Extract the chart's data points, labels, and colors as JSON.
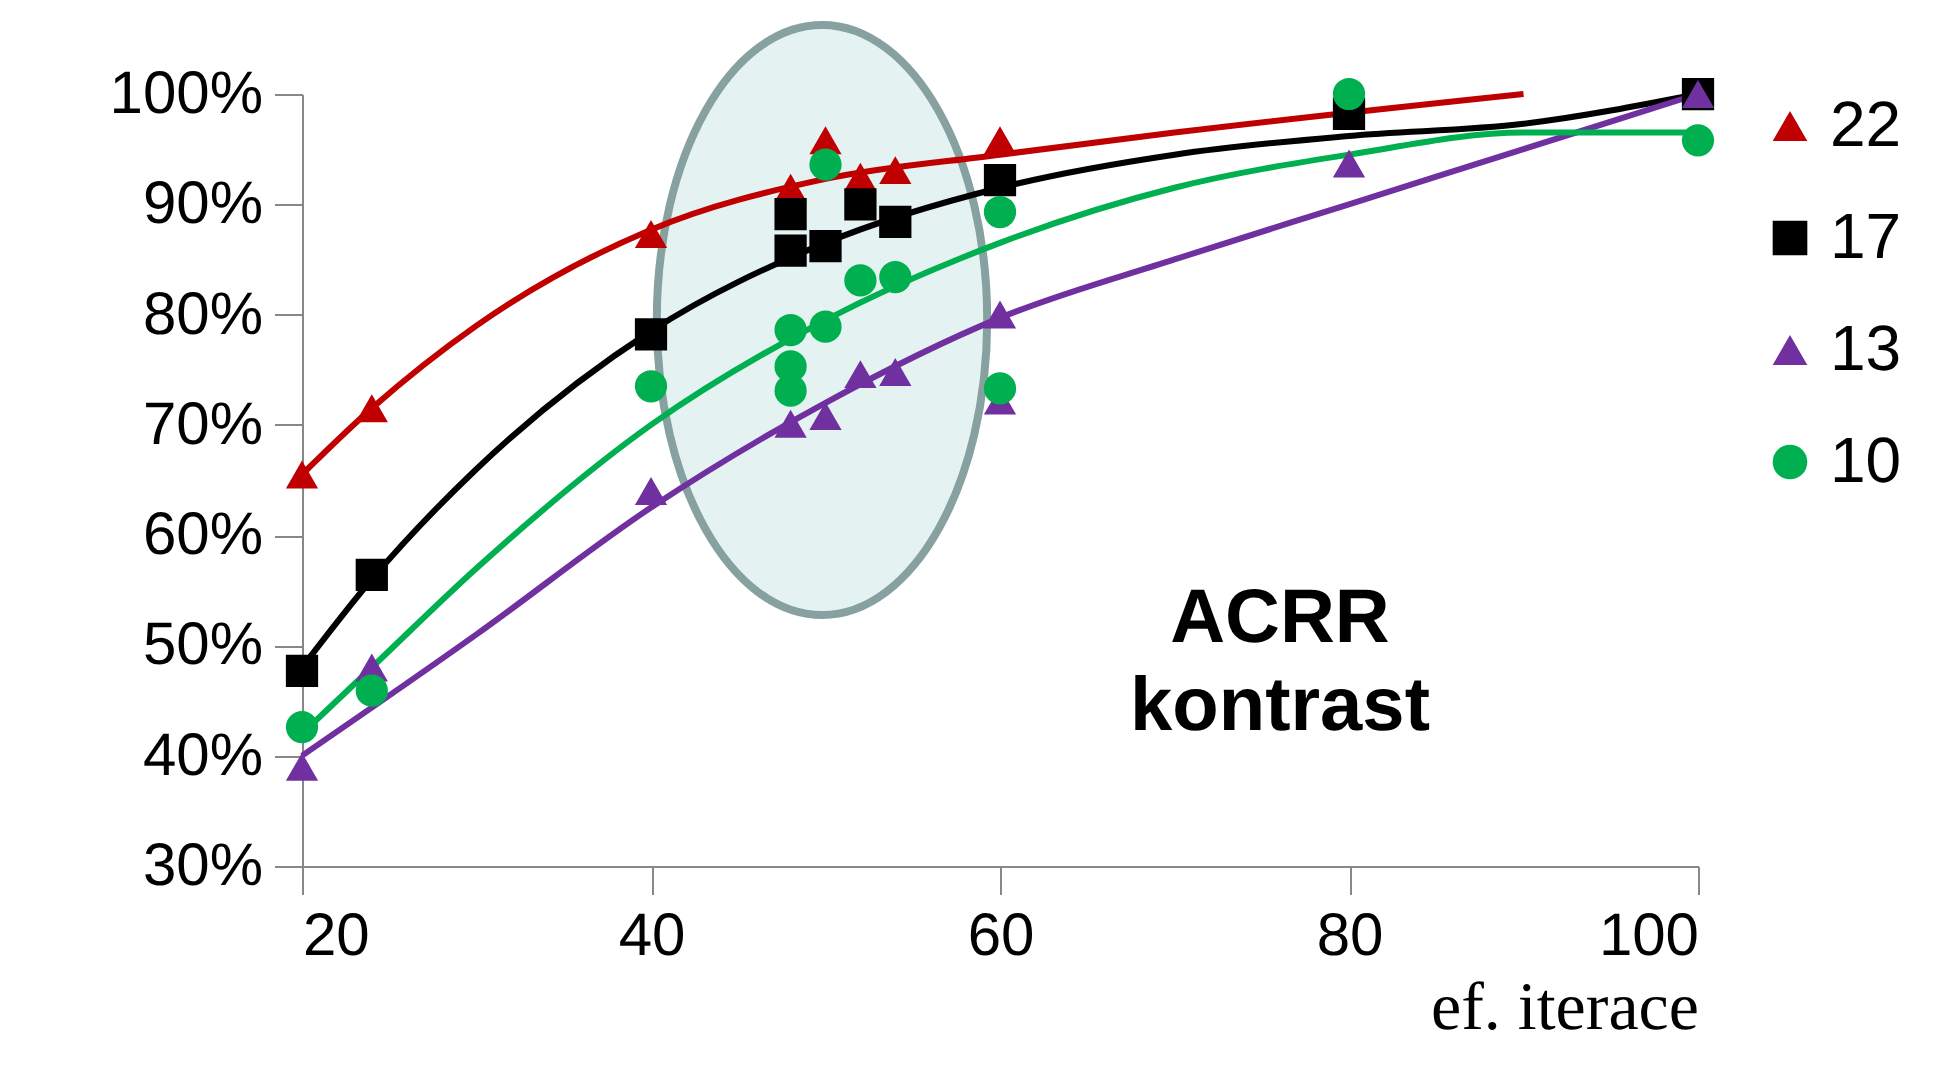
{
  "chart_data": {
    "type": "scatter",
    "title": "ACRR kontrast",
    "xlabel": "ef. iterace",
    "xlim": [
      20,
      100
    ],
    "xticks": [
      20,
      40,
      60,
      80,
      100
    ],
    "ylim": [
      30,
      100
    ],
    "yticks": [
      {
        "value": 30,
        "label": "30%"
      },
      {
        "value": 40,
        "label": "40%"
      },
      {
        "value": 50,
        "label": "50%"
      },
      {
        "value": 60,
        "label": "60%"
      },
      {
        "value": 70,
        "label": "70%"
      },
      {
        "value": 80,
        "label": "80%"
      },
      {
        "value": 90,
        "label": "90%"
      },
      {
        "value": 100,
        "label": "100%"
      }
    ],
    "grid": false,
    "legend": "right",
    "series": [
      {
        "type": "line",
        "color": "#c00000",
        "x": [
          20,
          24,
          30,
          40,
          50,
          60,
          70,
          90
        ],
        "values": [
          65.5,
          71.5,
          79,
          87.7,
          92.3,
          94.5,
          96.5,
          100
        ]
      },
      {
        "type": "line",
        "color": "#000000",
        "x": [
          20,
          24,
          30,
          40,
          50,
          60,
          70,
          80,
          90,
          100
        ],
        "values": [
          48,
          56,
          66,
          78.5,
          86.5,
          91.5,
          94.5,
          96.2,
          97.3,
          100
        ]
      },
      {
        "type": "line",
        "color": "#7030a0",
        "x": [
          20,
          30,
          40,
          50,
          60,
          70,
          80,
          90,
          100
        ],
        "values": [
          40,
          51,
          62.5,
          72,
          79.7,
          85,
          90,
          95,
          100
        ]
      },
      {
        "type": "line",
        "color": "#00b050",
        "x": [
          20,
          24,
          30,
          40,
          50,
          60,
          70,
          80,
          90,
          100
        ],
        "values": [
          42,
          48,
          57,
          70,
          79.5,
          86.5,
          91.5,
          94.5,
          96.5,
          96.5
        ]
      },
      {
        "name": "22",
        "color": "#c00000",
        "marker": "triangle",
        "x": [
          20,
          24,
          40,
          48,
          50,
          52,
          54,
          60
        ],
        "values": [
          65.5,
          71.5,
          87.3,
          91.5,
          95.8,
          92.5,
          93.1,
          95.8
        ]
      },
      {
        "name": "17",
        "color": "#000000",
        "marker": "square",
        "x": [
          20,
          24,
          40,
          48,
          48,
          50,
          52,
          54,
          60,
          80,
          100
        ],
        "values": [
          47.7,
          56.4,
          78.2,
          89.1,
          85.8,
          86.2,
          90,
          88.4,
          92.2,
          98.2,
          100
        ]
      },
      {
        "name": "13",
        "color": "#7030a0",
        "marker": "triangle",
        "x": [
          20,
          24,
          40,
          48,
          50,
          52,
          54,
          60,
          60,
          80,
          100
        ],
        "values": [
          39,
          48,
          64,
          70.1,
          70.8,
          74.6,
          74.8,
          80,
          72.2,
          93.7,
          100
        ]
      },
      {
        "name": "10",
        "color": "#00b050",
        "marker": "circle",
        "x": [
          20,
          24,
          40,
          48,
          48,
          48,
          50,
          50,
          52,
          54,
          60,
          60,
          80,
          100
        ],
        "values": [
          42.6,
          45.9,
          73.5,
          78.6,
          75.3,
          73.1,
          93.6,
          78.9,
          83.1,
          83.4,
          89.3,
          73.3,
          100,
          95.8
        ]
      }
    ]
  }
}
